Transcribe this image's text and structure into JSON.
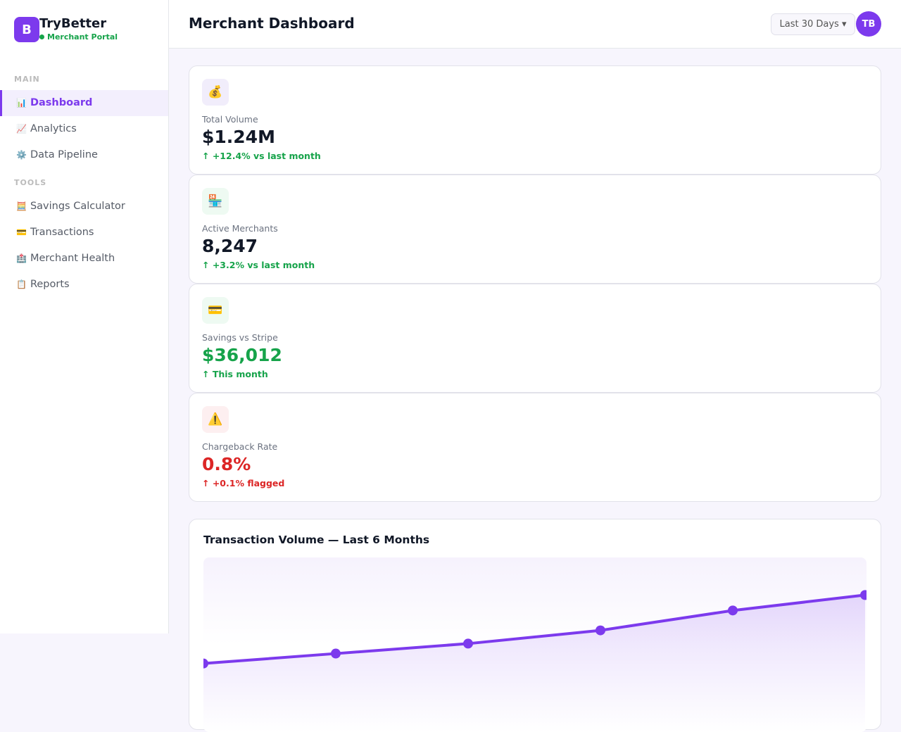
{
  "sidebar": {
    "brand": {
      "logo": "B",
      "name": "TryBetter",
      "subtitle": "Merchant Portal"
    },
    "sections": [
      {
        "title": "MAIN",
        "items": [
          {
            "icon": "📊",
            "label": "Dashboard"
          },
          {
            "icon": "📈",
            "label": "Analytics"
          },
          {
            "icon": "⚙️",
            "label": "Data Pipeline"
          }
        ]
      },
      {
        "title": "TOOLS",
        "items": [
          {
            "icon": "🧮",
            "label": "Savings Calculator"
          },
          {
            "icon": "💳",
            "label": "Transactions"
          },
          {
            "icon": "🏥",
            "label": "Merchant Health"
          },
          {
            "icon": "📋",
            "label": "Reports"
          }
        ]
      }
    ]
  },
  "header": {
    "title": "Merchant Dashboard",
    "date_range": "Last 30 Days ▾",
    "avatar": "TB"
  },
  "stats": [
    {
      "icon": "💰",
      "label": "Total Volume",
      "value": "$1.24M",
      "change": "↑ +12.4% vs last month"
    },
    {
      "icon": "🏪",
      "label": "Active Merchants",
      "value": "8,247",
      "change": "↑ +3.2% vs last month"
    },
    {
      "icon": "💳",
      "label": "Savings vs Stripe",
      "value": "$36,012",
      "change": "↑ This month"
    },
    {
      "icon": "⚠️",
      "label": "Chargeback Rate",
      "value": "0.8%",
      "change": "↑ +0.1% flagged"
    }
  ],
  "chart_data": {
    "type": "line",
    "title": "Transaction Volume — Last 6 Months",
    "values": [
      0.62,
      0.71,
      0.8,
      0.92,
      1.1,
      1.24
    ],
    "color": "#7c3aed",
    "ylim": [
      0,
      1.58
    ]
  }
}
